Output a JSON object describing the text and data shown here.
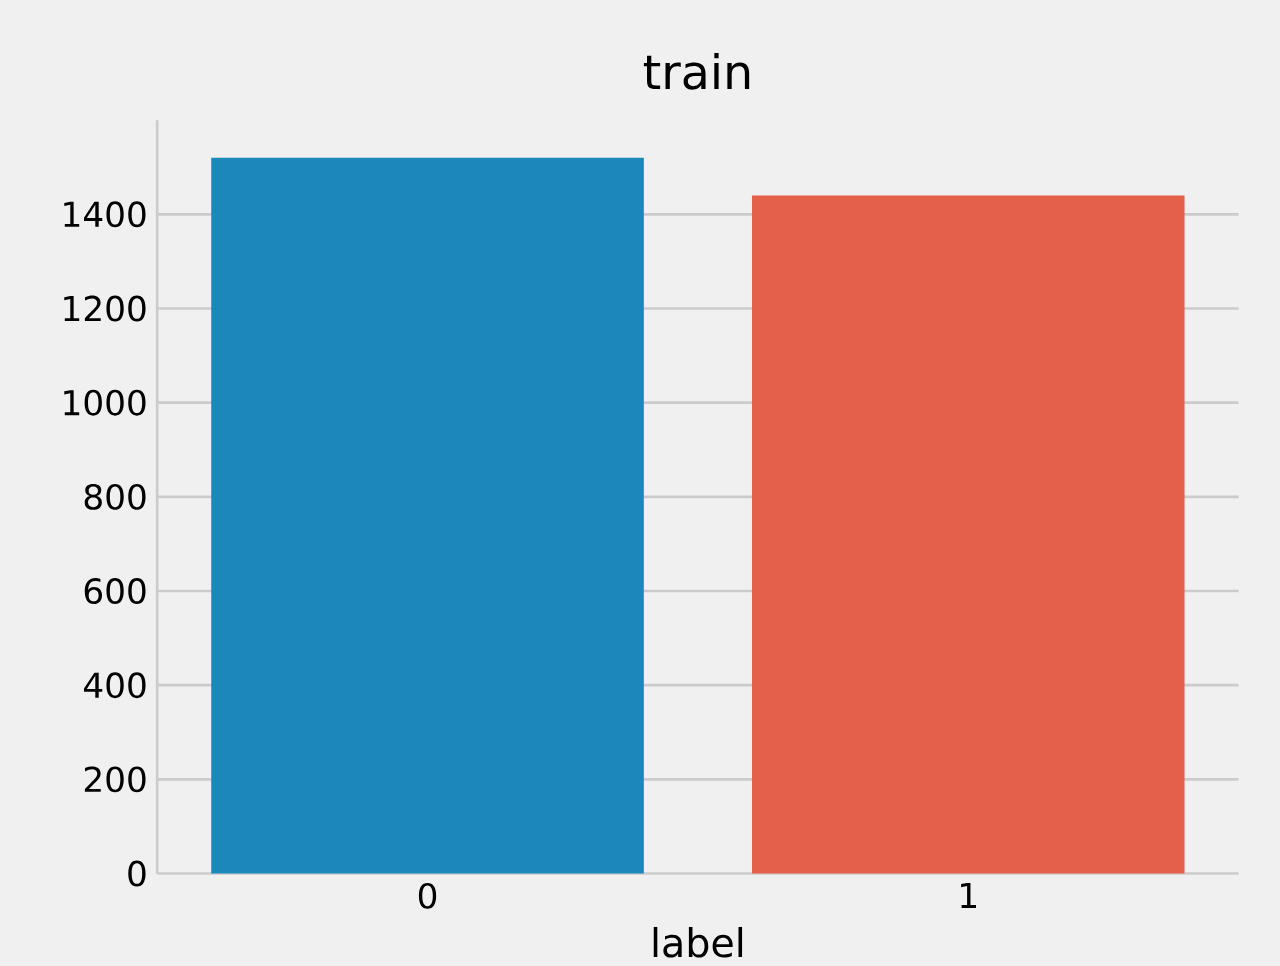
{
  "chart_data": {
    "type": "bar",
    "title": "train",
    "xlabel": "label",
    "categories": [
      "0",
      "1"
    ],
    "values": [
      1520,
      1440
    ],
    "colors": [
      "#1b87bb",
      "#e5604a"
    ],
    "ylim": [
      0,
      1600
    ],
    "yticks": [
      0,
      200,
      400,
      600,
      800,
      1000,
      1200,
      1400
    ],
    "grid": "y"
  }
}
